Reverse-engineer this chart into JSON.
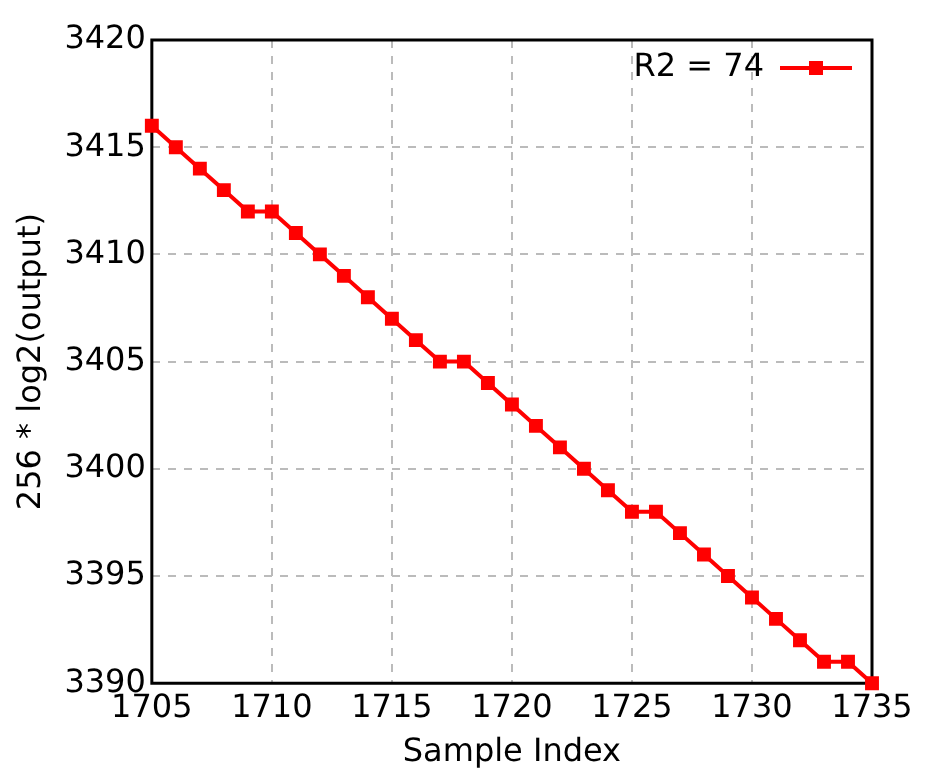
{
  "chart_data": {
    "type": "line",
    "xlabel": "Sample Index",
    "ylabel": "256 * log2(output)",
    "x": [
      1705,
      1706,
      1707,
      1708,
      1709,
      1710,
      1711,
      1712,
      1713,
      1714,
      1715,
      1716,
      1717,
      1718,
      1719,
      1720,
      1721,
      1722,
      1723,
      1724,
      1725,
      1726,
      1727,
      1728,
      1729,
      1730,
      1731,
      1732,
      1733,
      1734,
      1735
    ],
    "series": [
      {
        "name": "R2 = 74",
        "color": "#ff0000",
        "values": [
          3416,
          3415,
          3414,
          3413,
          3412,
          3412,
          3411,
          3410,
          3409,
          3408,
          3407,
          3406,
          3405,
          3405,
          3404,
          3403,
          3402,
          3401,
          3400,
          3399,
          3398,
          3398,
          3397,
          3396,
          3395,
          3394,
          3393,
          3392,
          3391,
          3391,
          3390
        ]
      }
    ],
    "xlim": [
      1705,
      1735
    ],
    "xticks": [
      1705,
      1710,
      1715,
      1720,
      1725,
      1730,
      1735
    ],
    "ylim": [
      3390,
      3420
    ],
    "yticks": [
      3390,
      3395,
      3400,
      3405,
      3410,
      3415,
      3420
    ],
    "grid": true,
    "legend": "top right",
    "marker": "square",
    "line_style": "solid"
  }
}
